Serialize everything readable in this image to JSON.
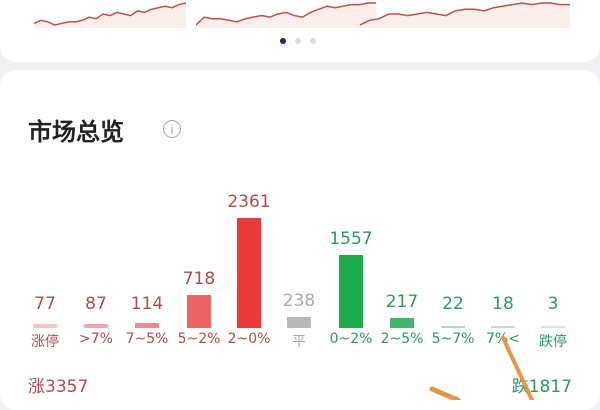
{
  "carousel": {
    "pages": 3,
    "active_index": 0,
    "sparklines": [
      [
        2,
        4,
        3,
        1,
        2,
        3,
        3,
        4,
        6,
        5,
        8,
        7,
        9,
        8,
        7,
        10,
        9,
        11,
        12,
        13,
        12,
        14,
        15
      ],
      [
        1,
        6,
        5,
        5,
        4,
        3,
        5,
        6,
        7,
        6,
        8,
        9,
        7,
        6,
        9,
        11,
        13,
        12,
        13,
        14,
        14,
        15,
        15
      ],
      [
        1,
        4,
        5,
        8,
        8,
        7,
        8,
        9,
        8,
        7,
        10,
        11,
        11,
        10,
        12,
        13,
        14,
        15,
        14,
        15,
        15,
        14,
        14
      ]
    ],
    "line_color": "#c0504d"
  },
  "market_overview": {
    "title": "市场总览",
    "info_icon": "info-icon",
    "chart_data": {
      "type": "bar",
      "categories": [
        "涨停",
        ">7%",
        "7~5%",
        "5~2%",
        "2~0%",
        "平",
        "0~2%",
        "2~5%",
        "5~7%",
        "7%<",
        "跌停"
      ],
      "values": [
        77,
        87,
        114,
        718,
        2361,
        238,
        1557,
        217,
        22,
        18,
        3
      ],
      "colors": [
        "#f2c4c4",
        "#eea8a8",
        "#e88c8c",
        "#ec6464",
        "#ec3a3a",
        "#b9b9b9",
        "#1aab4c",
        "#3cb868",
        "#b9d8c4",
        "#c8dccf",
        "#d8e8dd"
      ],
      "label_colors": [
        "#b34a4a",
        "#b34a4a",
        "#b34a4a",
        "#b34a4a",
        "#b34a4a",
        "#aaaaaa",
        "#2a9a5a",
        "#2a9a5a",
        "#2a9a5a",
        "#2a9a5a",
        "#2a9a5a"
      ]
    },
    "up_total": "涨3357",
    "down_total": "跌1817",
    "up_color": "#b34a4a",
    "down_color": "#2a9a5a"
  }
}
